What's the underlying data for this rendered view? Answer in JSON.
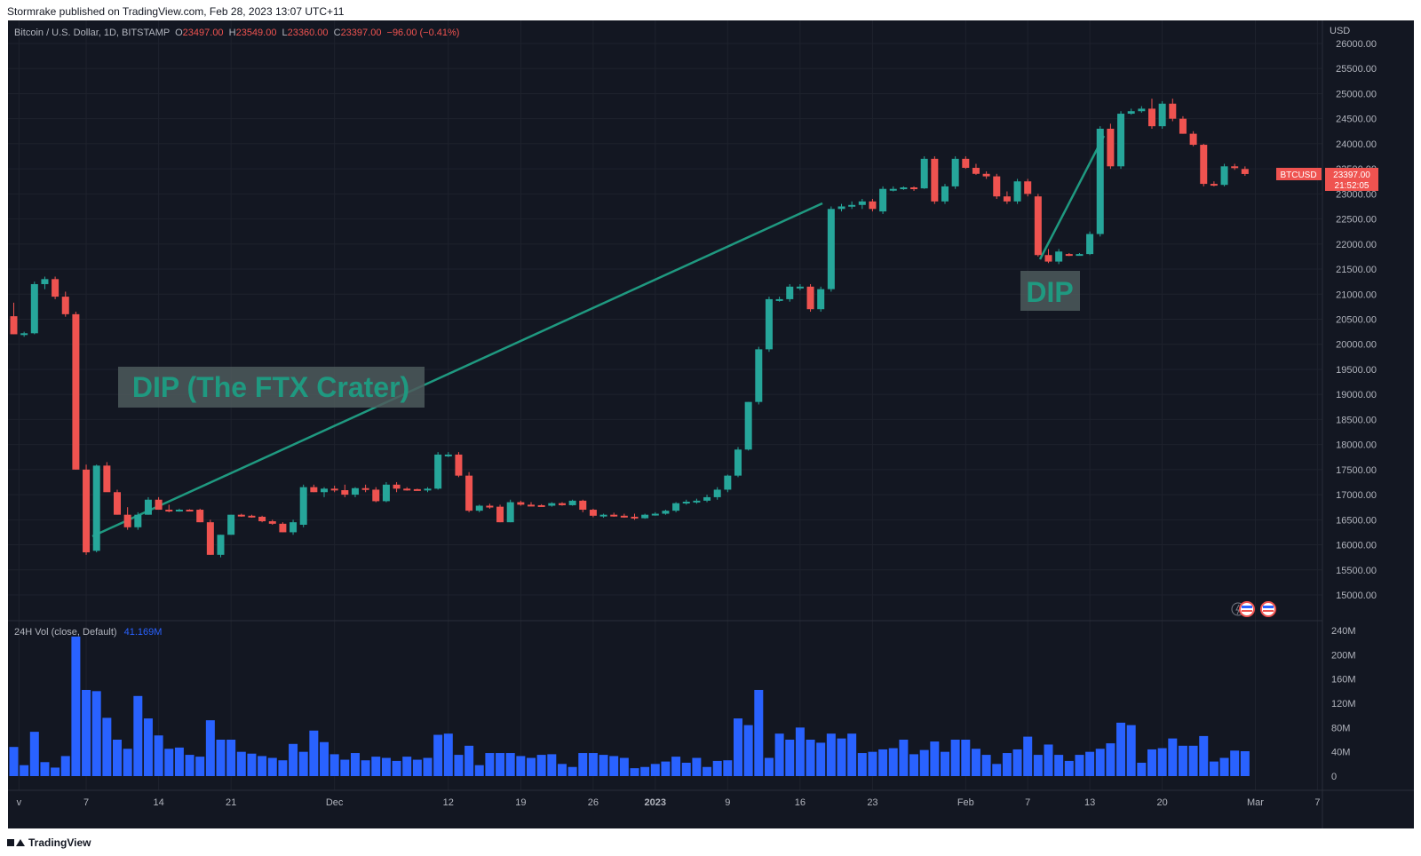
{
  "header": {
    "publish_text": "Stormrake published on TradingView.com, Feb 28, 2023 13:07 UTC+11"
  },
  "footer": {
    "brand": "TradingView"
  },
  "colors": {
    "background": "#131722",
    "up": "#26a69a",
    "down": "#ef5350",
    "volume": "#2962ff",
    "annotation": "#1f9980"
  },
  "legend": {
    "symbol": "Bitcoin / U.S. Dollar, 1D, BITSTAMP",
    "o_label": "O",
    "o_value": "23497.00",
    "h_label": "H",
    "h_value": "23549.00",
    "l_label": "L",
    "l_value": "23360.00",
    "c_label": "C",
    "c_value": "23397.00",
    "change": "−96.00 (−0.41%)"
  },
  "volume_legend": {
    "name": "24H Vol (close, Default)",
    "value": "41.169M"
  },
  "price_tag": {
    "symbol": "BTCUSD",
    "price": "23397.00",
    "countdown": "21:52:05"
  },
  "annotations": [
    {
      "text": "DIP (The FTX Crater)"
    },
    {
      "text": "DIP"
    }
  ],
  "chart_data": {
    "type": "candlestick",
    "symbol": "BTCUSD",
    "exchange": "BITSTAMP",
    "interval": "1D",
    "currency": "USD",
    "y_range": [
      14500,
      26200
    ],
    "y_ticks": [
      15000,
      15500,
      16000,
      16500,
      17000,
      17500,
      18000,
      18500,
      19000,
      19500,
      20000,
      20500,
      21000,
      21500,
      22000,
      22500,
      23000,
      23500,
      24000,
      24500,
      25000,
      25500,
      26000
    ],
    "volume_ticks": [
      "0",
      "40M",
      "80M",
      "120M",
      "160M",
      "200M",
      "240M"
    ],
    "volume_max": 240,
    "x_labels": [
      {
        "day": 0.5,
        "label": "v"
      },
      {
        "day": 7,
        "label": "7"
      },
      {
        "day": 14,
        "label": "14"
      },
      {
        "day": 21,
        "label": "21"
      },
      {
        "day": 31,
        "label": "Dec"
      },
      {
        "day": 42,
        "label": "12"
      },
      {
        "day": 49,
        "label": "19"
      },
      {
        "day": 56,
        "label": "26"
      },
      {
        "day": 62,
        "label": "2023"
      },
      {
        "day": 69,
        "label": "9"
      },
      {
        "day": 76,
        "label": "16"
      },
      {
        "day": 83,
        "label": "23"
      },
      {
        "day": 92,
        "label": "Feb"
      },
      {
        "day": 98,
        "label": "7"
      },
      {
        "day": 104,
        "label": "13"
      },
      {
        "day": 111,
        "label": "20"
      },
      {
        "day": 120,
        "label": "Mar"
      },
      {
        "day": 126,
        "label": "7"
      }
    ],
    "candles": [
      [
        20560,
        20830,
        20200,
        20200
      ],
      [
        20200,
        20250,
        20150,
        20220
      ],
      [
        20220,
        21250,
        20200,
        21200
      ],
      [
        21200,
        21350,
        21100,
        21300
      ],
      [
        21300,
        21350,
        20900,
        20950
      ],
      [
        20950,
        21050,
        20550,
        20600
      ],
      [
        20600,
        20650,
        17500,
        17500
      ],
      [
        17500,
        17600,
        15800,
        15850
      ],
      [
        15880,
        17600,
        15850,
        17580
      ],
      [
        17580,
        17650,
        17100,
        17050
      ],
      [
        17050,
        17100,
        16600,
        16600
      ],
      [
        16600,
        16750,
        16300,
        16350
      ],
      [
        16350,
        16650,
        16300,
        16600
      ],
      [
        16600,
        16950,
        16600,
        16900
      ],
      [
        16900,
        16950,
        16700,
        16700
      ],
      [
        16700,
        16800,
        16650,
        16680
      ],
      [
        16690,
        16720,
        16660,
        16700
      ],
      [
        16700,
        16710,
        16680,
        16690
      ],
      [
        16700,
        16720,
        16450,
        16450
      ],
      [
        16450,
        16500,
        15800,
        15800
      ],
      [
        15800,
        16200,
        15750,
        16200
      ],
      [
        16200,
        16600,
        16200,
        16600
      ],
      [
        16600,
        16620,
        16560,
        16580
      ],
      [
        16580,
        16600,
        16540,
        16560
      ],
      [
        16560,
        16580,
        16450,
        16470
      ],
      [
        16470,
        16500,
        16400,
        16420
      ],
      [
        16420,
        16450,
        16250,
        16250
      ],
      [
        16250,
        16500,
        16200,
        16450
      ],
      [
        16400,
        17200,
        16350,
        17150
      ],
      [
        17150,
        17200,
        17050,
        17050
      ],
      [
        17050,
        17150,
        16950,
        17120
      ],
      [
        17120,
        17180,
        17050,
        17090
      ],
      [
        17090,
        17200,
        16950,
        17000
      ],
      [
        17000,
        17150,
        16950,
        17130
      ],
      [
        17130,
        17200,
        17050,
        17100
      ],
      [
        17100,
        17150,
        16850,
        16870
      ],
      [
        16870,
        17250,
        16850,
        17200
      ],
      [
        17200,
        17250,
        17050,
        17120
      ],
      [
        17120,
        17150,
        17080,
        17110
      ],
      [
        17110,
        17120,
        17080,
        17100
      ],
      [
        17100,
        17150,
        17050,
        17120
      ],
      [
        17120,
        17850,
        17100,
        17800
      ],
      [
        17800,
        17850,
        17750,
        17800
      ],
      [
        17800,
        17850,
        17350,
        17380
      ],
      [
        17380,
        17450,
        16650,
        16680
      ],
      [
        16680,
        16800,
        16650,
        16780
      ],
      [
        16780,
        16820,
        16720,
        16760
      ],
      [
        16760,
        16800,
        16450,
        16450
      ],
      [
        16450,
        16900,
        16450,
        16850
      ],
      [
        16850,
        16880,
        16780,
        16800
      ],
      [
        16800,
        16850,
        16770,
        16790
      ],
      [
        16790,
        16810,
        16760,
        16780
      ],
      [
        16780,
        16850,
        16760,
        16830
      ],
      [
        16830,
        16850,
        16780,
        16790
      ],
      [
        16790,
        16900,
        16780,
        16880
      ],
      [
        16880,
        16900,
        16650,
        16700
      ],
      [
        16700,
        16720,
        16550,
        16580
      ],
      [
        16580,
        16620,
        16540,
        16600
      ],
      [
        16600,
        16640,
        16560,
        16580
      ],
      [
        16580,
        16620,
        16540,
        16560
      ],
      [
        16560,
        16620,
        16500,
        16530
      ],
      [
        16530,
        16620,
        16520,
        16600
      ],
      [
        16600,
        16650,
        16580,
        16620
      ],
      [
        16620,
        16700,
        16600,
        16680
      ],
      [
        16680,
        16850,
        16650,
        16830
      ],
      [
        16830,
        16900,
        16800,
        16860
      ],
      [
        16860,
        16920,
        16820,
        16880
      ],
      [
        16880,
        17000,
        16850,
        16950
      ],
      [
        16950,
        17150,
        16900,
        17100
      ],
      [
        17100,
        17400,
        17050,
        17380
      ],
      [
        17380,
        17950,
        17350,
        17900
      ],
      [
        17900,
        18850,
        17880,
        18850
      ],
      [
        18850,
        19950,
        18800,
        19900
      ],
      [
        19900,
        20950,
        19850,
        20900
      ],
      [
        20900,
        20950,
        20850,
        20900
      ],
      [
        20900,
        21200,
        20850,
        21150
      ],
      [
        21150,
        21200,
        21080,
        21150
      ],
      [
        21150,
        21200,
        20650,
        20700
      ],
      [
        20700,
        21150,
        20650,
        21100
      ],
      [
        21100,
        22750,
        21050,
        22700
      ],
      [
        22700,
        22800,
        22650,
        22750
      ],
      [
        22750,
        22850,
        22700,
        22780
      ],
      [
        22780,
        22900,
        22700,
        22850
      ],
      [
        22850,
        22900,
        22650,
        22700
      ],
      [
        22650,
        23150,
        22600,
        23100
      ],
      [
        23100,
        23150,
        23050,
        23100
      ],
      [
        23100,
        23150,
        23080,
        23130
      ],
      [
        23130,
        23150,
        23060,
        23110
      ],
      [
        23110,
        23750,
        23100,
        23700
      ],
      [
        23700,
        23750,
        22800,
        22850
      ],
      [
        22850,
        23200,
        22800,
        23150
      ],
      [
        23150,
        23750,
        23100,
        23700
      ],
      [
        23700,
        23750,
        23500,
        23520
      ],
      [
        23520,
        23600,
        23380,
        23400
      ],
      [
        23400,
        23450,
        23300,
        23350
      ],
      [
        23350,
        23400,
        22900,
        22950
      ],
      [
        22950,
        23050,
        22800,
        22850
      ],
      [
        22850,
        23300,
        22800,
        23250
      ],
      [
        23250,
        23300,
        22950,
        23000
      ],
      [
        22950,
        23000,
        21750,
        21780
      ],
      [
        21780,
        21900,
        21620,
        21650
      ],
      [
        21650,
        21900,
        21600,
        21850
      ],
      [
        21800,
        21820,
        21760,
        21780
      ],
      [
        21780,
        21820,
        21770,
        21800
      ],
      [
        21800,
        22250,
        21780,
        22200
      ],
      [
        22200,
        24350,
        22150,
        24300
      ],
      [
        24300,
        24400,
        23500,
        23550
      ],
      [
        23550,
        24650,
        23500,
        24600
      ],
      [
        24600,
        24700,
        24580,
        24650
      ],
      [
        24650,
        24750,
        24620,
        24700
      ],
      [
        24700,
        24900,
        24300,
        24350
      ],
      [
        24350,
        24850,
        24300,
        24800
      ],
      [
        24800,
        24900,
        24450,
        24500
      ],
      [
        24500,
        24550,
        24200,
        24200
      ],
      [
        24200,
        24250,
        23950,
        23980
      ],
      [
        23980,
        24000,
        23150,
        23200
      ],
      [
        23200,
        23250,
        23150,
        23180
      ],
      [
        23180,
        23600,
        23150,
        23550
      ],
      [
        23550,
        23600,
        23480,
        23520
      ],
      [
        23497,
        23549,
        23360,
        23397
      ]
    ],
    "volume_m": [
      48,
      18,
      73,
      23,
      14,
      33,
      230,
      142,
      140,
      96,
      60,
      45,
      132,
      95,
      67,
      45,
      47,
      35,
      32,
      92,
      60,
      60,
      40,
      37,
      33,
      30,
      26,
      53,
      40,
      75,
      56,
      36,
      27,
      38,
      26,
      32,
      30,
      25,
      32,
      27,
      30,
      68,
      70,
      35,
      50,
      18,
      38,
      38,
      38,
      33,
      30,
      35,
      36,
      20,
      15,
      38,
      38,
      35,
      33,
      30,
      13,
      15,
      20,
      24,
      32,
      22,
      30,
      15,
      25,
      26,
      95,
      84,
      142,
      30,
      70,
      60,
      80,
      60,
      55,
      70,
      62,
      70,
      38,
      40,
      44,
      46,
      60,
      36,
      43,
      57,
      40,
      60,
      60,
      45,
      35,
      20,
      38,
      44,
      65,
      35,
      52,
      35,
      25,
      35,
      40,
      45,
      54,
      88,
      84,
      22,
      44,
      46,
      62,
      50,
      50,
      66,
      24,
      30,
      42,
      41
    ]
  }
}
